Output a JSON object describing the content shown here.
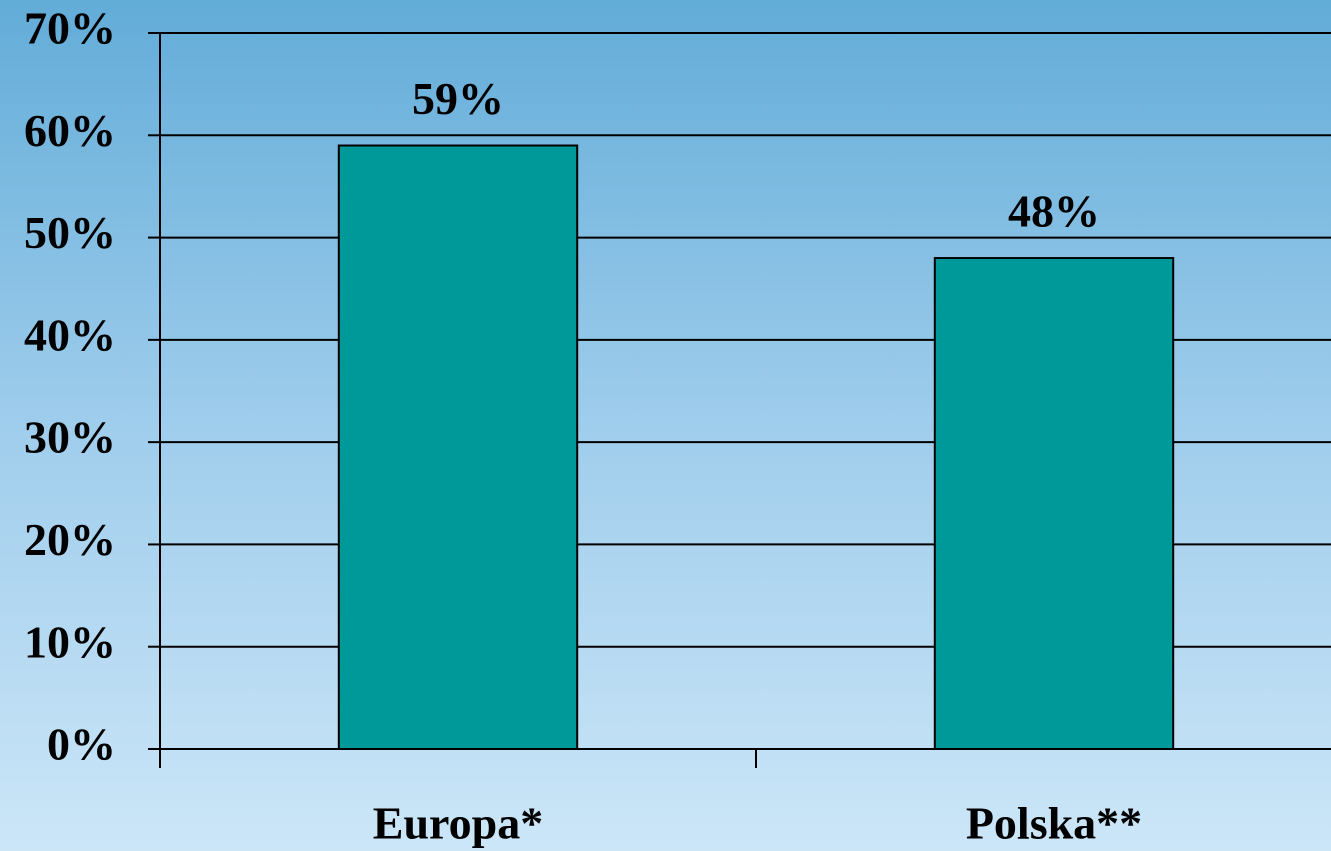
{
  "chart_data": {
    "type": "bar",
    "categories": [
      "Europa*",
      "Polska**"
    ],
    "values": [
      59,
      48
    ],
    "value_labels": [
      "59%",
      "48%"
    ],
    "color": "#009999",
    "ylim": [
      0,
      70
    ],
    "yticks": [
      {
        "value": 0,
        "label": "0%"
      },
      {
        "value": 10,
        "label": "10%"
      },
      {
        "value": 20,
        "label": "20%"
      },
      {
        "value": 30,
        "label": "30%"
      },
      {
        "value": 40,
        "label": "40%"
      },
      {
        "value": 50,
        "label": "50%"
      },
      {
        "value": 60,
        "label": "60%"
      },
      {
        "value": 70,
        "label": "70%"
      }
    ],
    "grid": true
  }
}
